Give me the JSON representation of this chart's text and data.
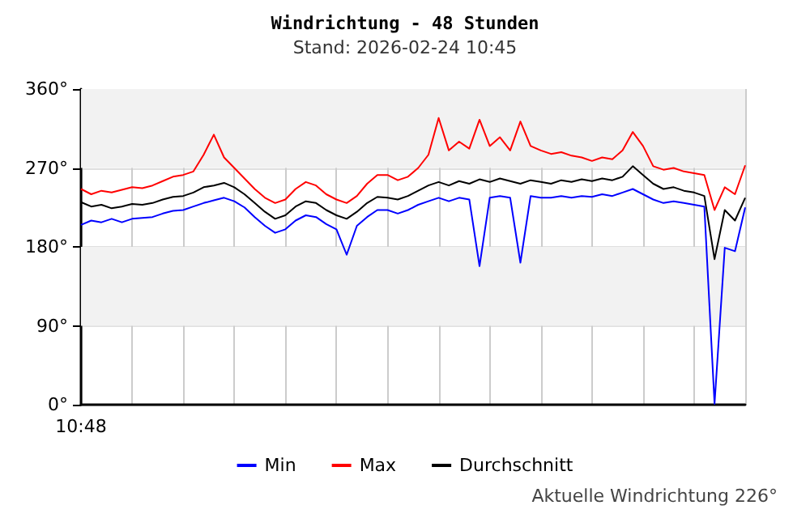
{
  "chart_data": {
    "type": "line",
    "title": "Windrichtung - 48 Stunden",
    "subtitle": "Stand: 2026-02-24 10:45",
    "annotations": [
      "Aktuelle Windrichtung 226°"
    ],
    "categories": [
      "10:48",
      null,
      null,
      null,
      null,
      null,
      null,
      null,
      null,
      null,
      null,
      null,
      null,
      null,
      null,
      null,
      null,
      null,
      null,
      null,
      null,
      null,
      null,
      null,
      null,
      null,
      null,
      null,
      null,
      null,
      null,
      null,
      null,
      null,
      null,
      null,
      null,
      null,
      null,
      null,
      null,
      null,
      null,
      null,
      null,
      null,
      null,
      null,
      null,
      null,
      null,
      null,
      null,
      null,
      null,
      null,
      null,
      null,
      null,
      null,
      null,
      null,
      null,
      null,
      null,
      null
    ],
    "series": [
      {
        "name": "Min",
        "color": "#0000ff",
        "values": [
          205,
          210,
          208,
          212,
          208,
          212,
          213,
          214,
          218,
          221,
          222,
          226,
          230,
          233,
          236,
          232,
          225,
          214,
          204,
          196,
          200,
          210,
          216,
          214,
          206,
          200,
          171,
          204,
          214,
          222,
          222,
          218,
          222,
          228,
          232,
          236,
          232,
          236,
          234,
          158,
          236,
          238,
          236,
          162,
          238,
          236,
          236,
          238,
          236,
          238,
          237,
          240,
          238,
          242,
          246,
          240,
          234,
          230,
          232,
          230,
          228,
          226,
          1,
          179,
          175,
          225
        ]
      },
      {
        "name": "Max",
        "color": "#ff0000",
        "values": [
          246,
          240,
          244,
          242,
          245,
          248,
          247,
          250,
          255,
          260,
          262,
          266,
          285,
          308,
          282,
          270,
          258,
          246,
          236,
          230,
          234,
          246,
          254,
          250,
          240,
          234,
          230,
          238,
          252,
          262,
          262,
          256,
          260,
          270,
          285,
          327,
          290,
          300,
          292,
          325,
          295,
          305,
          290,
          323,
          295,
          290,
          286,
          288,
          284,
          282,
          278,
          282,
          280,
          290,
          311,
          295,
          272,
          268,
          270,
          266,
          264,
          262,
          222,
          248,
          240,
          273
        ]
      },
      {
        "name": "Durchschnitt",
        "color": "#000000",
        "values": [
          231,
          226,
          228,
          224,
          226,
          229,
          228,
          230,
          234,
          237,
          238,
          242,
          248,
          250,
          253,
          248,
          240,
          230,
          220,
          212,
          216,
          226,
          232,
          230,
          222,
          216,
          212,
          220,
          230,
          237,
          236,
          234,
          238,
          244,
          250,
          254,
          250,
          255,
          252,
          257,
          254,
          258,
          255,
          252,
          256,
          254,
          252,
          256,
          254,
          257,
          255,
          258,
          256,
          260,
          272,
          262,
          252,
          246,
          248,
          244,
          242,
          238,
          166,
          222,
          210,
          236
        ]
      }
    ],
    "ylim": [
      0,
      360
    ],
    "yticks": [
      {
        "value": 0,
        "label": "0°"
      },
      {
        "value": 90,
        "label": "90°"
      },
      {
        "value": 180,
        "label": "180°"
      },
      {
        "value": 270,
        "label": "270°"
      },
      {
        "value": 360,
        "label": "360°"
      }
    ],
    "bands": [
      {
        "axis": "y",
        "from": 270,
        "to": 360,
        "color": "#f2f2f2"
      },
      {
        "axis": "y",
        "from": 90,
        "to": 180,
        "color": "#f2f2f2"
      }
    ],
    "grid": true,
    "legend": "bottom",
    "marker": "none",
    "line_style": "solid"
  }
}
